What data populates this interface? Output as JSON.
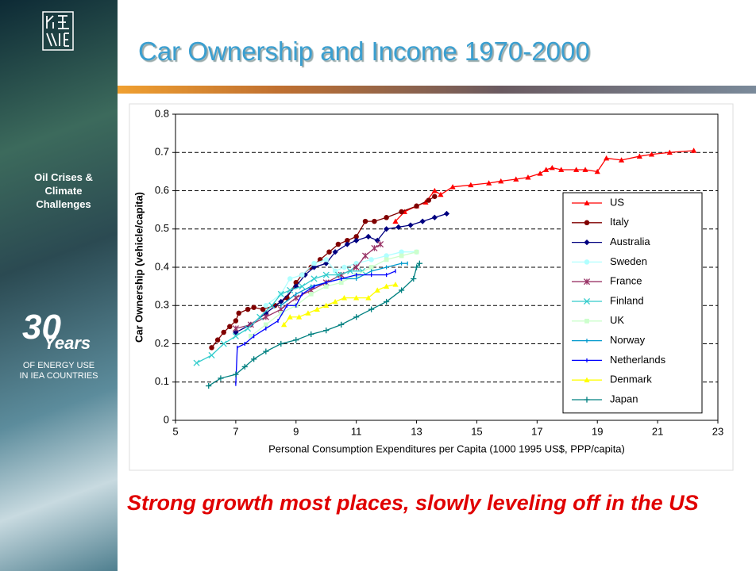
{
  "slide": {
    "caption": "Strong growth most places, slowly leveling off in the US",
    "sidebar": {
      "topic": "Oil Crises & Climate Challenges",
      "number": "30",
      "years": "Years",
      "line1": "OF ENERGY USE",
      "line2": "IN IEA COUNTRIES"
    }
  },
  "chart_data": {
    "type": "line",
    "title": "Car Ownership and Income 1970-2000",
    "x_label": "Personal Consumption Expenditures per Capita (1000 1995 US$, PPP/capita)",
    "y_label": "Car Ownership (vehicle/capita)",
    "xlim": [
      5,
      23
    ],
    "xticks": [
      5,
      7,
      9,
      11,
      13,
      15,
      17,
      19,
      21,
      23
    ],
    "ylim": [
      0,
      0.8
    ],
    "yticks": [
      0,
      0.1,
      0.2,
      0.3,
      0.4,
      0.5,
      0.6,
      0.7,
      0.8
    ],
    "grid": true,
    "legend": "right",
    "series": [
      {
        "name": "US",
        "color": "#ff0000",
        "marker": "triangle",
        "x": [
          12.3,
          12.6,
          13.0,
          13.3,
          13.6,
          13.8,
          14.2,
          14.8,
          15.4,
          15.8,
          16.3,
          16.7,
          17.1,
          17.3,
          17.5,
          17.8,
          18.3,
          18.6,
          19.0,
          19.3,
          19.8,
          20.4,
          20.8,
          21.4,
          22.2
        ],
        "values": [
          0.52,
          0.545,
          0.56,
          0.57,
          0.6,
          0.59,
          0.61,
          0.615,
          0.62,
          0.625,
          0.63,
          0.635,
          0.645,
          0.655,
          0.66,
          0.655,
          0.655,
          0.655,
          0.65,
          0.685,
          0.68,
          0.69,
          0.695,
          0.7,
          0.705
        ]
      },
      {
        "name": "Italy",
        "color": "#800000",
        "marker": "circle",
        "x": [
          6.2,
          6.4,
          6.6,
          6.8,
          7.0,
          7.1,
          7.4,
          7.6,
          7.9,
          8.3,
          8.7,
          9.0,
          9.2,
          9.5,
          9.8,
          10.1,
          10.4,
          10.7,
          11.0,
          11.3,
          11.6,
          12.0,
          12.5,
          13.0,
          13.4,
          13.6
        ],
        "values": [
          0.19,
          0.21,
          0.23,
          0.245,
          0.26,
          0.28,
          0.29,
          0.295,
          0.29,
          0.3,
          0.32,
          0.36,
          0.38,
          0.4,
          0.42,
          0.44,
          0.46,
          0.47,
          0.48,
          0.52,
          0.52,
          0.53,
          0.545,
          0.56,
          0.575,
          0.585
        ]
      },
      {
        "name": "Australia",
        "color": "#000080",
        "marker": "diamond",
        "x": [
          7.0,
          7.5,
          8.0,
          8.5,
          9.0,
          9.3,
          9.6,
          10.0,
          10.3,
          10.7,
          11.0,
          11.4,
          11.7,
          12.0,
          12.4,
          12.8,
          13.2,
          13.6,
          14.0
        ],
        "values": [
          0.23,
          0.25,
          0.28,
          0.31,
          0.35,
          0.38,
          0.4,
          0.41,
          0.44,
          0.46,
          0.47,
          0.48,
          0.47,
          0.5,
          0.505,
          0.51,
          0.52,
          0.53,
          0.54
        ]
      },
      {
        "name": "Sweden",
        "color": "#b0ffff",
        "marker": "circle",
        "x": [
          8.0,
          8.5,
          8.8,
          9.2,
          9.6,
          10.0,
          10.3,
          10.6,
          11.0,
          11.5,
          12.0,
          12.5,
          13.0
        ],
        "values": [
          0.3,
          0.33,
          0.37,
          0.38,
          0.41,
          0.42,
          0.39,
          0.4,
          0.41,
          0.42,
          0.43,
          0.44,
          0.44
        ]
      },
      {
        "name": "France",
        "color": "#993366",
        "marker": "star",
        "x": [
          7.0,
          7.5,
          8.0,
          8.5,
          9.0,
          9.5,
          10.0,
          10.5,
          11.0,
          11.3,
          11.6,
          11.8
        ],
        "values": [
          0.24,
          0.25,
          0.27,
          0.29,
          0.32,
          0.34,
          0.36,
          0.38,
          0.4,
          0.43,
          0.45,
          0.46
        ]
      },
      {
        "name": "Finland",
        "color": "#33cccc",
        "marker": "x",
        "x": [
          5.7,
          6.2,
          6.6,
          7.0,
          7.4,
          7.8,
          8.2,
          8.5,
          8.8,
          9.2,
          9.6,
          10.0,
          10.4,
          10.8,
          11.2
        ],
        "values": [
          0.15,
          0.17,
          0.2,
          0.22,
          0.24,
          0.27,
          0.3,
          0.33,
          0.34,
          0.35,
          0.37,
          0.38,
          0.38,
          0.39,
          0.39
        ]
      },
      {
        "name": "UK",
        "color": "#ccffcc",
        "marker": "square",
        "x": [
          7.5,
          8.0,
          8.5,
          9.0,
          9.5,
          10.0,
          10.5,
          11.0,
          11.5,
          12.0,
          12.5,
          13.0
        ],
        "values": [
          0.22,
          0.25,
          0.28,
          0.3,
          0.33,
          0.35,
          0.36,
          0.38,
          0.4,
          0.42,
          0.43,
          0.44
        ]
      },
      {
        "name": "Norway",
        "color": "#0099cc",
        "marker": "dash",
        "x": [
          8.5,
          9.0,
          9.5,
          10.0,
          10.5,
          11.0,
          11.5,
          12.0,
          12.5,
          12.7
        ],
        "values": [
          0.3,
          0.33,
          0.35,
          0.36,
          0.37,
          0.37,
          0.39,
          0.4,
          0.41,
          0.41
        ]
      },
      {
        "name": "Netherlands",
        "color": "#0000ff",
        "marker": "dash",
        "x": [
          7.0,
          7.05,
          7.3,
          7.6,
          8.0,
          8.4,
          8.7,
          9.0,
          9.2,
          9.6,
          10.0,
          10.5,
          11.0,
          11.5,
          12.0,
          12.3
        ],
        "values": [
          0.095,
          0.19,
          0.2,
          0.22,
          0.24,
          0.26,
          0.3,
          0.3,
          0.33,
          0.35,
          0.36,
          0.37,
          0.38,
          0.38,
          0.38,
          0.39
        ]
      },
      {
        "name": "Denmark",
        "color": "#ffff00",
        "marker": "triangle",
        "x": [
          8.6,
          8.8,
          9.1,
          9.4,
          9.7,
          10.0,
          10.3,
          10.6,
          11.0,
          11.4,
          11.7,
          12.0,
          12.3
        ],
        "values": [
          0.25,
          0.27,
          0.27,
          0.28,
          0.29,
          0.3,
          0.31,
          0.32,
          0.32,
          0.32,
          0.34,
          0.35,
          0.355
        ]
      },
      {
        "name": "Japan",
        "color": "#008080",
        "marker": "plus",
        "x": [
          6.1,
          6.5,
          7.0,
          7.3,
          7.6,
          8.0,
          8.5,
          9.0,
          9.5,
          10.0,
          10.5,
          11.0,
          11.5,
          12.0,
          12.5,
          12.9,
          13.0,
          13.1
        ],
        "values": [
          0.09,
          0.11,
          0.12,
          0.14,
          0.16,
          0.18,
          0.2,
          0.21,
          0.225,
          0.235,
          0.25,
          0.27,
          0.29,
          0.31,
          0.34,
          0.37,
          0.4,
          0.41
        ]
      }
    ]
  }
}
